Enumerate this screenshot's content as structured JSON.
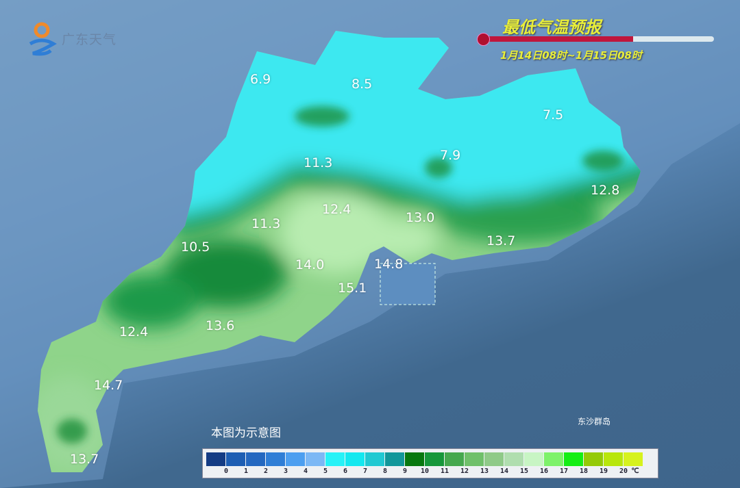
{
  "logo": {
    "text": "广东天气",
    "icon": "sun-wave-logo-icon"
  },
  "header": {
    "title": "最低气温预报",
    "period": "1月14日08时~1月15日08时",
    "thermometer_fill": 0.65
  },
  "note": "本图为示意图",
  "island_label": "东沙群岛",
  "values": [
    "6.9",
    "8.5",
    "7.5",
    "11.3",
    "7.9",
    "12.8",
    "12.4",
    "13.0",
    "11.3",
    "10.5",
    "13.7",
    "14.0",
    "14.8",
    "15.1",
    "12.4",
    "13.6",
    "14.7",
    "13.7"
  ],
  "legend": {
    "labels": [
      "0",
      "1",
      "2",
      "3",
      "4",
      "5",
      "6",
      "7",
      "8",
      "9",
      "10",
      "11",
      "12",
      "13",
      "14",
      "15",
      "16",
      "17",
      "18",
      "19",
      "20",
      "℃"
    ],
    "colors": [
      "#143c84",
      "#1d5eb3",
      "#2468c0",
      "#2f7ed6",
      "#4d9ff0",
      "#7cb8f5",
      "#27f2f7",
      "#14e8ef",
      "#21c9d2",
      "#12979a",
      "#07780f",
      "#16973a",
      "#45a84e",
      "#6fc06a",
      "#8fca88",
      "#b0deaf",
      "#c8f5c4",
      "#7ef26a",
      "#14ee14",
      "#94ca07",
      "#b8e60c",
      "#d6f21e"
    ]
  },
  "colors": {
    "sea": "#3f658b",
    "cold": "#3ee8f0",
    "mid": "#1e9a48",
    "warm": "#a6e6a0",
    "title": "#e8ee3a"
  }
}
